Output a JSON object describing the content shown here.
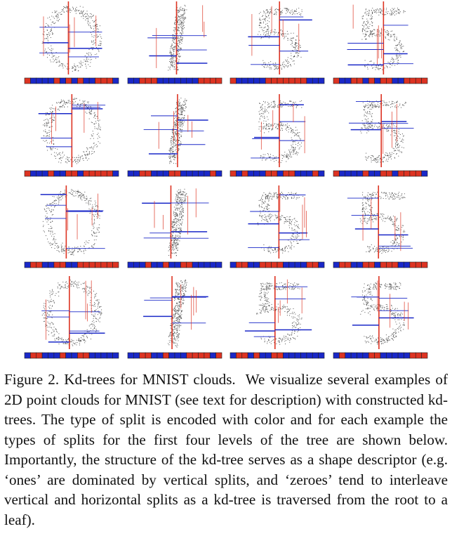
{
  "figure": {
    "label": "Figure 2.",
    "title": "Kd-trees for MNIST clouds.",
    "body": "We visualize several examples of 2D point clouds for MNIST (see text for description) with constructed kd-trees. The type of split is encoded with color and for each example the types of splits for the first four levels of the tree are shown below. Importantly, the structure of the kd-tree serves as a shape descriptor (e.g. ‘ones’ are dominated by vertical splits, and ‘zeroes’ tend to interleave vertical and horizontal splits as a kd-tree is traversed from the root to a leaf)."
  },
  "colors": {
    "vertical_split": "#dd3322",
    "horizontal_split": "#1a28c8",
    "points": "#555555",
    "bar_border": "#222222"
  },
  "grid": {
    "rows": [
      {
        "digits": [
          "0",
          "1",
          "5",
          "5"
        ]
      },
      {
        "digits": [
          "0",
          "1",
          "5",
          "5"
        ]
      },
      {
        "digits": [
          "0",
          "1",
          "5",
          "5"
        ]
      },
      {
        "digits": [
          "0",
          "1",
          "5",
          "5"
        ]
      }
    ]
  },
  "split_codes": [
    [
      "RBBBBRBRBRBBRRRB",
      "BBRRRBBBBBBBRRRR",
      "RBBBBBRRRRRRRBBB",
      "RBBRRBRBRRBBRRRR"
    ],
    [
      "RBBBRBBRRBRRRRRB",
      "BBRRBBBRRBBBBBRB",
      "RBRBBBRRBRRBBBRB",
      "RBBBBRBBRRBRRRRB"
    ],
    [
      "BRRBBRRBBRRRRRRR",
      "BBBRBBRBBRRBBBBB",
      "BRRBBRRRRBBBBRRB",
      "BRRBBRRBRRRBBRRR"
    ],
    [
      "BRRBBBRBBRRBBBBB",
      "BBRRBBRBBBRRRRBR",
      "BRRBRBBRRBBBBBBB",
      "BRBBBBRRBBBBBRRR"
    ]
  ]
}
